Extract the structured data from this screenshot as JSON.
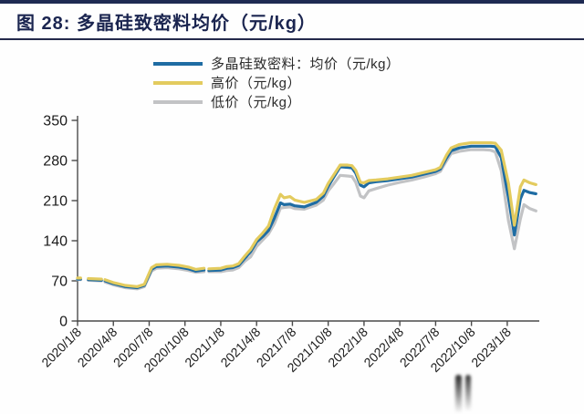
{
  "header": {
    "title": "图 28: 多晶硅致密料均价（元/kg）"
  },
  "colors": {
    "accent_navy": "#1b2550",
    "avg_line": "#1e6ca3",
    "high_line": "#e3cb5e",
    "low_line": "#c2c3c5",
    "axis": "#4a4a4a",
    "tick_text": "#1a1a1a"
  },
  "legend": {
    "items": [
      {
        "series": "avg",
        "label": "多晶硅致密料：均价（元/kg）"
      },
      {
        "series": "high",
        "label": "高价（元/kg）"
      },
      {
        "series": "low",
        "label": "低价（元/kg）"
      }
    ]
  },
  "chart_data": {
    "type": "line",
    "title": "多晶硅致密料均价（元/kg）",
    "ylabel": "",
    "xlabel": "",
    "ylim": [
      0,
      350
    ],
    "y_ticks": [
      0,
      70,
      140,
      210,
      280,
      350
    ],
    "grid": false,
    "legend_position": "top",
    "x_unit": "months since 2020/1/8",
    "x_tick_positions": [
      0,
      3,
      6,
      9,
      12,
      15,
      18,
      21,
      24,
      27,
      30,
      33,
      36
    ],
    "x_tick_labels": [
      "2020/1/8",
      "2020/4/8",
      "2020/7/8",
      "2020/10/8",
      "2021/1/8",
      "2021/4/8",
      "2021/7/8",
      "2021/10/8",
      "2022/1/8",
      "2022/4/8",
      "2022/7/8",
      "2022/10/8",
      "2023/1/8"
    ],
    "series_names": {
      "avg": "多晶硅致密料：均价（元/kg）",
      "high": "高价（元/kg）",
      "low": "低价（元/kg）"
    },
    "series_order_bottom_to_top": [
      "low",
      "avg",
      "high"
    ],
    "points_format": [
      "x_months",
      "avg",
      "high",
      "low"
    ],
    "points": [
      [
        0,
        73,
        75,
        72
      ],
      [
        0.25,
        73,
        75,
        72
      ],
      null,
      [
        0.9,
        72,
        74,
        71
      ],
      [
        2.0,
        71,
        73,
        70
      ],
      null,
      [
        2.3,
        70,
        72,
        68
      ],
      [
        3,
        65,
        67,
        63
      ],
      [
        4,
        60,
        62,
        58
      ],
      [
        5,
        58,
        60,
        56
      ],
      [
        5.6,
        62,
        64,
        60
      ],
      [
        6.2,
        90,
        93,
        87
      ],
      [
        6.6,
        95,
        98,
        92
      ],
      [
        7.5,
        96,
        99,
        93
      ],
      [
        8.5,
        94,
        97,
        91
      ],
      [
        9.3,
        91,
        94,
        88
      ],
      [
        9.9,
        87,
        90,
        85
      ],
      [
        10.6,
        89,
        92,
        86
      ],
      null,
      [
        11,
        88,
        91,
        86
      ],
      [
        12,
        89,
        92,
        86
      ],
      [
        12.5,
        92,
        95,
        88
      ],
      [
        13,
        93,
        96,
        89
      ],
      [
        13.5,
        97,
        100,
        93
      ],
      [
        14,
        109,
        113,
        104
      ],
      [
        14.5,
        121,
        125,
        112
      ],
      [
        15,
        138,
        142,
        130
      ],
      [
        15.5,
        147,
        153,
        141
      ],
      [
        16,
        158,
        166,
        152
      ],
      [
        16.5,
        180,
        196,
        170
      ],
      [
        17,
        206,
        221,
        197
      ],
      [
        17.3,
        203,
        215,
        198
      ],
      [
        17.8,
        204,
        217,
        199
      ],
      [
        18.2,
        201,
        211,
        196
      ],
      [
        19,
        199,
        207,
        195
      ],
      [
        20,
        207,
        212,
        202
      ],
      [
        20.6,
        218,
        223,
        211
      ],
      [
        21,
        235,
        240,
        227
      ],
      [
        21.5,
        252,
        256,
        240
      ],
      [
        22,
        269,
        272,
        254
      ],
      [
        22.6,
        268,
        272,
        253
      ],
      [
        23,
        267,
        271,
        252
      ],
      [
        23.3,
        258,
        263,
        242
      ],
      [
        23.7,
        237,
        242,
        218
      ],
      [
        24,
        234,
        241,
        215
      ],
      [
        24.4,
        241,
        245,
        227
      ],
      [
        25,
        243,
        246,
        231
      ],
      [
        26,
        245,
        248,
        237
      ],
      [
        27,
        248,
        251,
        242
      ],
      [
        28,
        251,
        254,
        246
      ],
      [
        29,
        256,
        259,
        251
      ],
      [
        30,
        261,
        264,
        257
      ],
      [
        30.4,
        265,
        268,
        261
      ],
      [
        30.9,
        284,
        289,
        279
      ],
      [
        31.3,
        297,
        302,
        292
      ],
      [
        32,
        302,
        308,
        296
      ],
      [
        33,
        305,
        311,
        299
      ],
      [
        34,
        305,
        311,
        299
      ],
      [
        34.6,
        305,
        311,
        298
      ],
      [
        35,
        304,
        310,
        295
      ],
      [
        35.5,
        285,
        298,
        262
      ],
      [
        36.1,
        215,
        240,
        175
      ],
      [
        36.6,
        150,
        167,
        126
      ],
      [
        37.1,
        213,
        234,
        178
      ],
      [
        37.4,
        228,
        246,
        203
      ],
      [
        37.9,
        224,
        241,
        196
      ],
      [
        38.4,
        222,
        238,
        192
      ]
    ]
  }
}
